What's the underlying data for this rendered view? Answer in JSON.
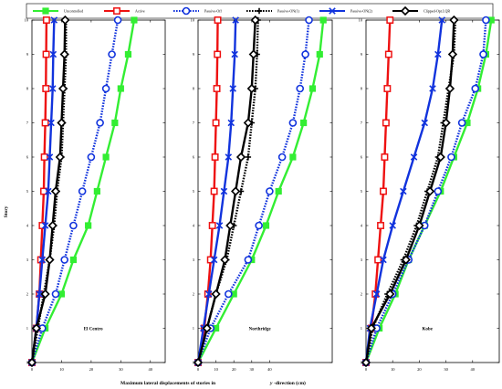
{
  "chart_data": {
    "type": "line",
    "ylabel": "Story",
    "xlabel_main": "Maximum lateral displacements of stories in",
    "xlabel_var": "y",
    "xlabel_unit": " -direction (cm)",
    "stories": [
      0,
      1,
      2,
      3,
      4,
      5,
      6,
      7,
      8,
      9,
      10
    ],
    "xticks": [
      "0",
      "10",
      "20",
      "30",
      "40"
    ],
    "yticks": [
      "0",
      "1",
      "2",
      "3",
      "4",
      "5",
      "6",
      "7",
      "8",
      "9",
      "10"
    ],
    "legend": [
      {
        "name": "Uncontrolled",
        "color": "#33ee33",
        "marker": "square",
        "style": "solid"
      },
      {
        "name": "Active",
        "color": "#ee1111",
        "marker": "square-open",
        "style": "solid"
      },
      {
        "name": "Passive-Off",
        "color": "#1133dd",
        "marker": "circle",
        "style": "dotted"
      },
      {
        "name": "Passive-ON(1)",
        "color": "#000000",
        "marker": "plus",
        "style": "dotted"
      },
      {
        "name": "Passive-ON(2)",
        "color": "#1133dd",
        "marker": "cross",
        "style": "solid"
      },
      {
        "name": "Clipped-Opt.LQR",
        "color": "#000000",
        "marker": "diamond",
        "style": "solid"
      }
    ],
    "panels": [
      {
        "name": "El Centro",
        "xlim": [
          0,
          45
        ],
        "series": [
          {
            "name": "Uncontrolled",
            "values": [
              0,
              4.5,
              10,
              14,
              19,
              22,
              25,
              28,
              30,
              32.5,
              34.5
            ]
          },
          {
            "name": "Active",
            "values": [
              0,
              1.5,
              2.5,
              3,
              3.5,
              4,
              4.2,
              4.5,
              4.7,
              4.8,
              4.9
            ]
          },
          {
            "name": "Passive-Off",
            "values": [
              0,
              3.5,
              8,
              11,
              14,
              17,
              20,
              23,
              25,
              27,
              29
            ]
          },
          {
            "name": "Passive-ON(1)",
            "values": [
              0,
              2,
              4,
              6,
              7.5,
              8.5,
              10,
              10.5,
              11,
              11.5,
              11.5
            ]
          },
          {
            "name": "Passive-ON(2)",
            "values": [
              0,
              1.5,
              2.5,
              3.5,
              4.5,
              5.5,
              6,
              6.5,
              7,
              7.2,
              7.5
            ]
          },
          {
            "name": "Clipped-Opt.LQR",
            "values": [
              0,
              1.5,
              4.5,
              6,
              7,
              8,
              9.5,
              10,
              10.5,
              11,
              11.2
            ]
          }
        ]
      },
      {
        "name": "Northridge",
        "xlim": [
          0,
          75
        ],
        "series": [
          {
            "name": "Uncontrolled",
            "values": [
              0,
              10,
              20,
              30,
              38,
              45,
              53,
              59,
              64,
              68,
              70
            ]
          },
          {
            "name": "Active",
            "values": [
              0,
              3.5,
              5.5,
              7,
              8,
              9,
              9.5,
              10,
              10.5,
              10.8,
              11
            ]
          },
          {
            "name": "Passive-Off",
            "values": [
              0,
              7,
              17,
              28,
              34,
              40,
              47,
              53,
              57,
              60,
              62
            ]
          },
          {
            "name": "Passive-ON(1)",
            "values": [
              0,
              5,
              10,
              16,
              20,
              24,
              28,
              30,
              32,
              33,
              33.5
            ]
          },
          {
            "name": "Passive-ON(2)",
            "values": [
              0,
              3,
              6,
              9,
              12,
              14.5,
              17,
              18.5,
              19.5,
              20.5,
              21
            ]
          },
          {
            "name": "Clipped-Opt.LQR",
            "values": [
              0,
              5,
              10,
              15,
              18,
              21,
              24,
              28,
              30,
              31,
              32
            ]
          }
        ]
      },
      {
        "name": "Kobe",
        "xlim": [
          0,
          50
        ],
        "series": [
          {
            "name": "Uncontrolled",
            "values": [
              0,
              5,
              11,
              16,
              22,
              28,
              33,
              38,
              42,
              45,
              47
            ]
          },
          {
            "name": "Active",
            "values": [
              0,
              2,
              3.5,
              4.5,
              5.5,
              6.5,
              7,
              7.5,
              8,
              8.5,
              9
            ]
          },
          {
            "name": "Passive-Off",
            "values": [
              0,
              4,
              10,
              16,
              22,
              27,
              32,
              36,
              41,
              44,
              45
            ]
          },
          {
            "name": "Passive-ON(1)",
            "values": [
              0,
              2.5,
              8,
              14,
              19,
              23,
              27,
              29,
              31,
              33,
              33.5
            ]
          },
          {
            "name": "Passive-ON(2)",
            "values": [
              0,
              1.5,
              4,
              6.5,
              10,
              14,
              18,
              22,
              25,
              27,
              28.5
            ]
          },
          {
            "name": "Clipped-Opt.LQR",
            "values": [
              0,
              2,
              9,
              15,
              20,
              24,
              28,
              30,
              31.5,
              32.5,
              33
            ]
          }
        ]
      }
    ]
  }
}
